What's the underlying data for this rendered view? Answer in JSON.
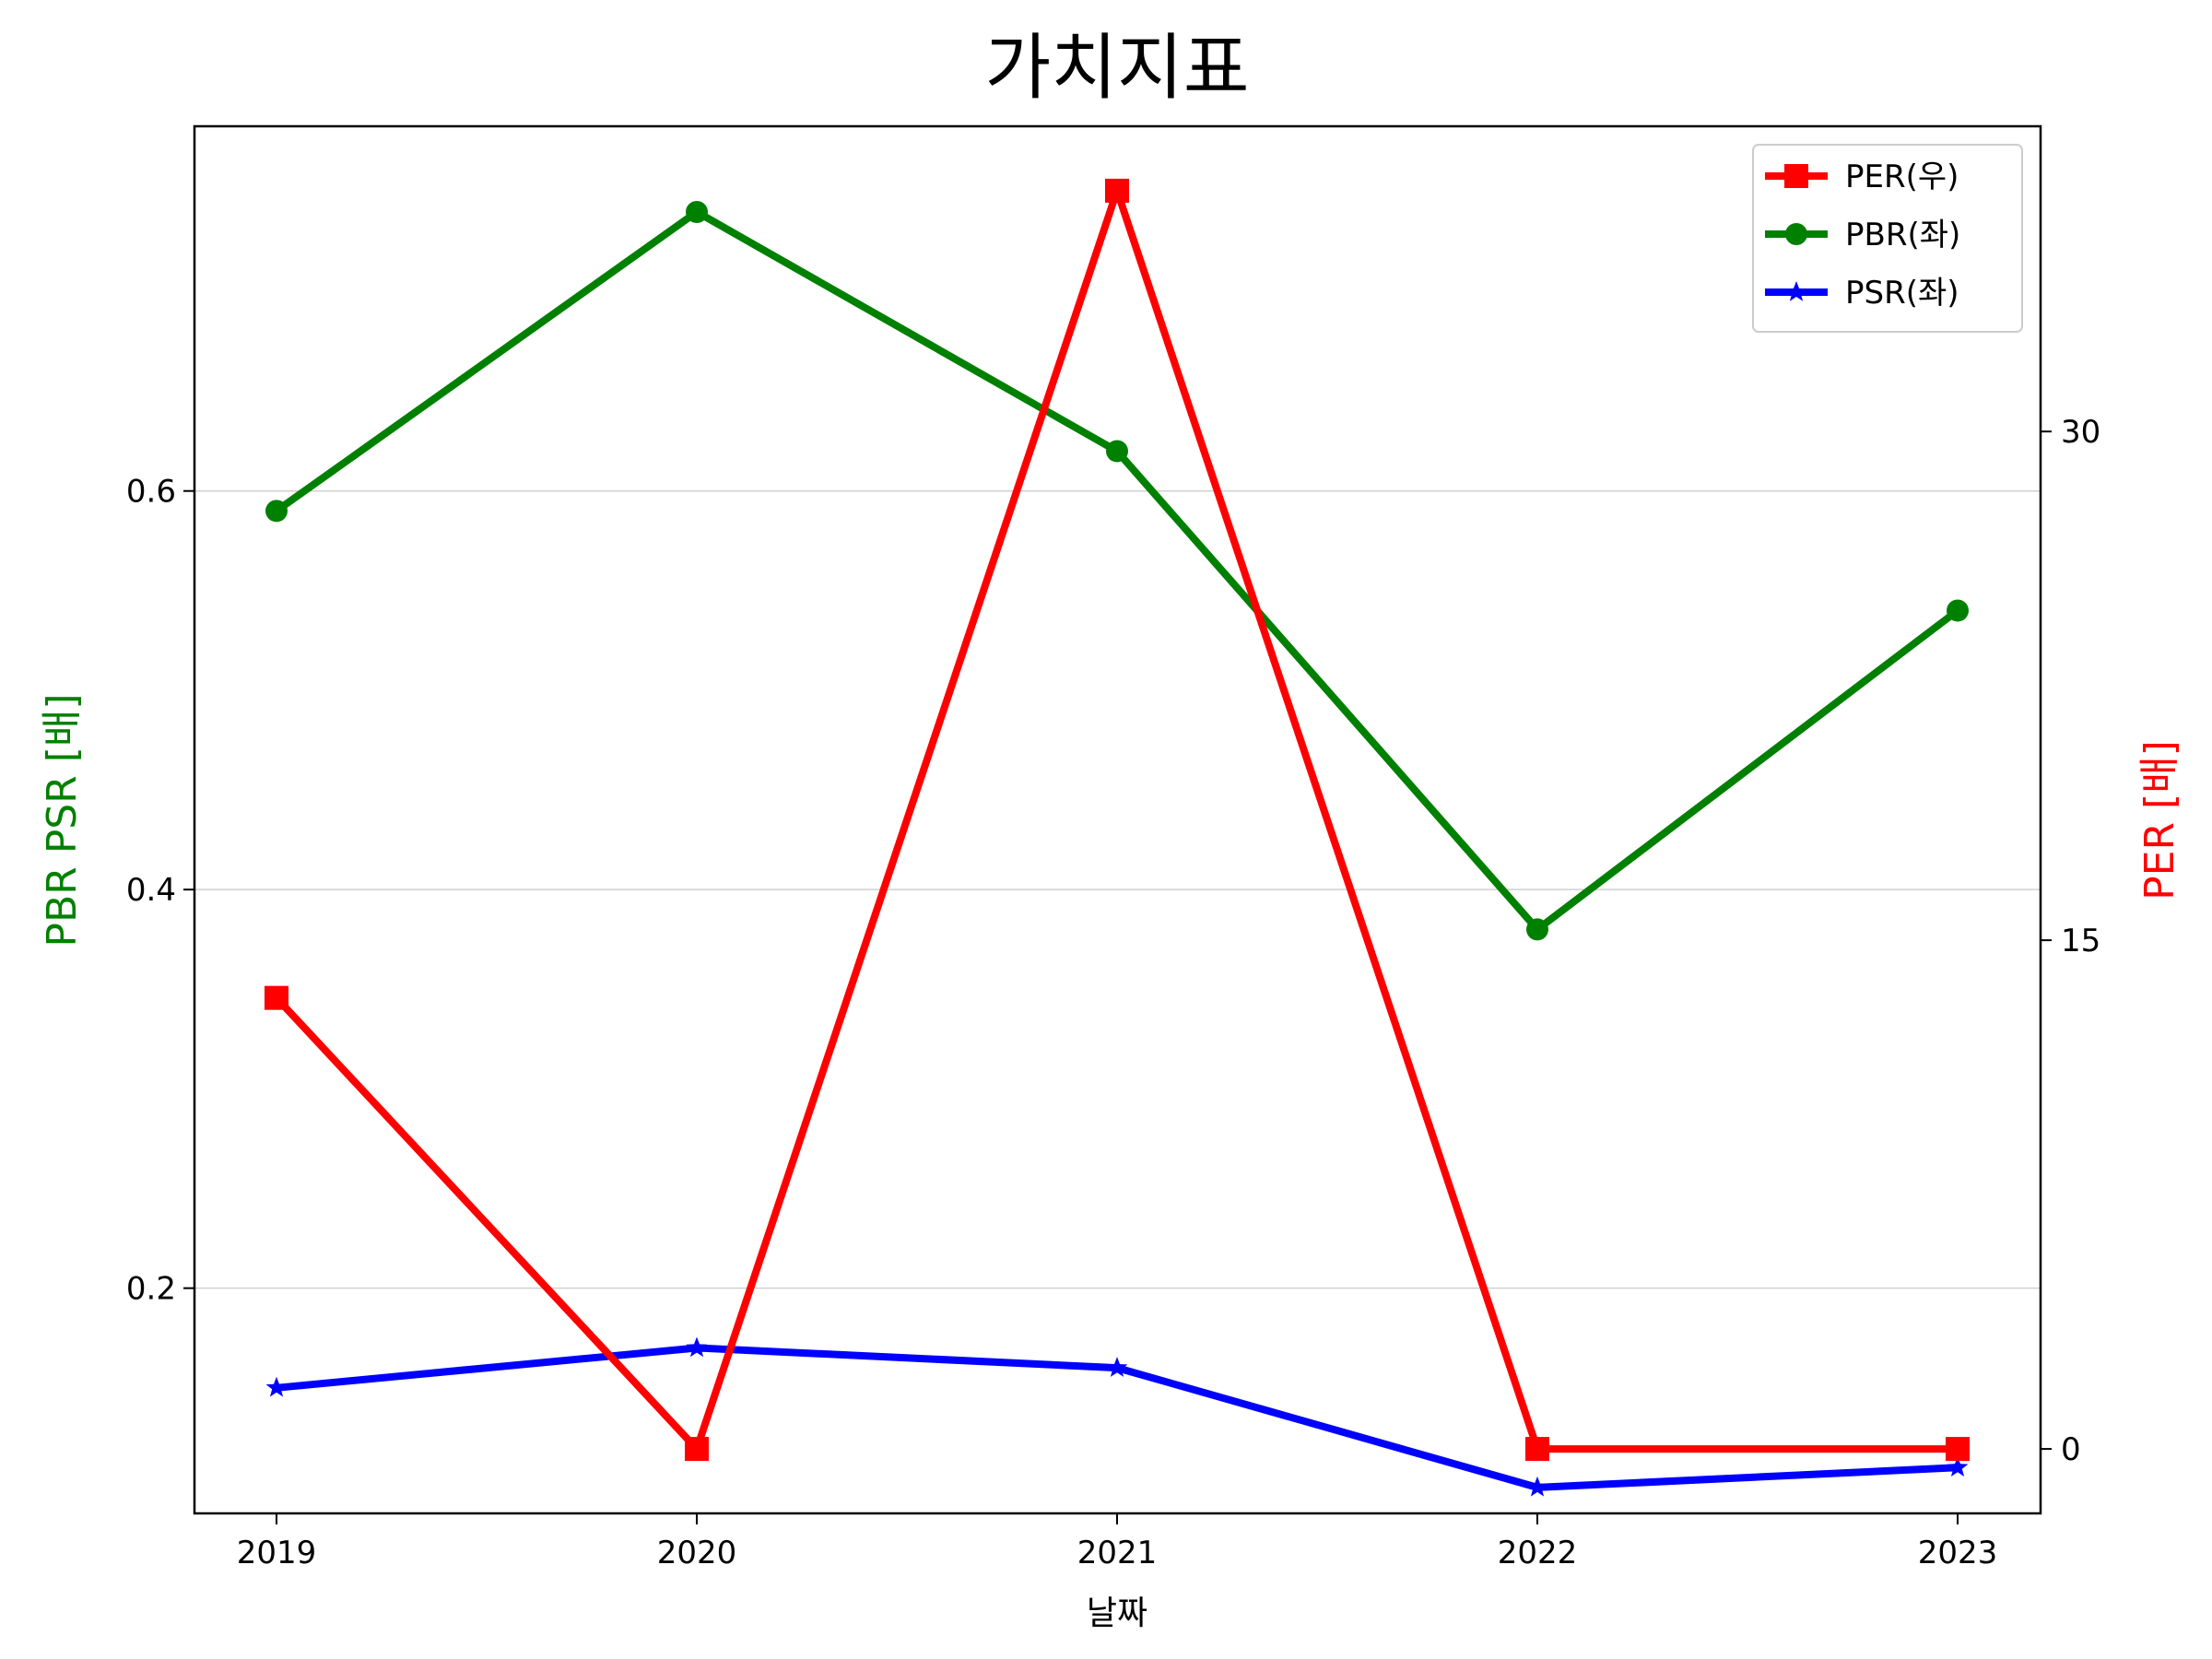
{
  "chart_data": {
    "type": "line",
    "title": "가치지표",
    "xlabel": "날짜",
    "ylabel_left": "PBR PSR [배]",
    "ylabel_right": "PER [배]",
    "categories": [
      "2019",
      "2020",
      "2021",
      "2022",
      "2023"
    ],
    "left_axis": {
      "ylim": [
        0.087,
        0.783
      ],
      "ticks": [
        0.2,
        0.4,
        0.6
      ],
      "tick_labels": [
        "0.2",
        "0.4",
        "0.6"
      ]
    },
    "right_axis": {
      "ylim": [
        -1.9,
        39.0
      ],
      "ticks": [
        0,
        15,
        30
      ],
      "tick_labels": [
        "0",
        "15",
        "30"
      ]
    },
    "grid": "horizontal (left axis)",
    "legend_position": "top-right",
    "series": [
      {
        "name": "PER(우)",
        "axis": "right",
        "color": "#ff0000",
        "marker": "square",
        "values": [
          13.3,
          0.0,
          37.1,
          0.0,
          0.0
        ]
      },
      {
        "name": "PBR(좌)",
        "axis": "left",
        "color": "#008000",
        "marker": "circle",
        "values": [
          0.59,
          0.74,
          0.62,
          0.38,
          0.54
        ]
      },
      {
        "name": "PSR(좌)",
        "axis": "left",
        "color": "#0000ff",
        "marker": "star",
        "values": [
          0.15,
          0.17,
          0.16,
          0.1,
          0.11
        ]
      }
    ]
  }
}
